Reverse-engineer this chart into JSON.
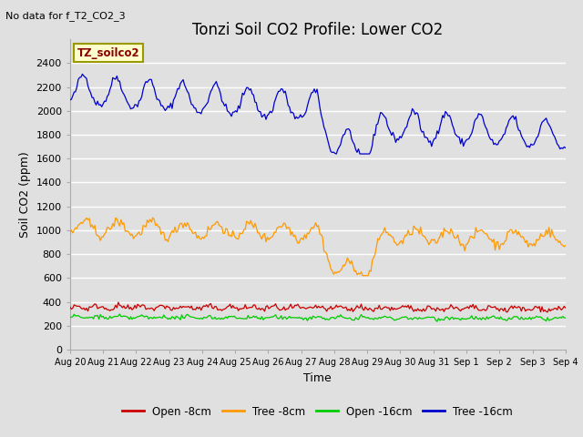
{
  "title": "Tonzi Soil CO2 Profile: Lower CO2",
  "subtitle": "No data for f_T2_CO2_3",
  "xlabel": "Time",
  "ylabel": "Soil CO2 (ppm)",
  "legend_label": "TZ_soilco2",
  "ylim": [
    0,
    2600
  ],
  "yticks": [
    0,
    200,
    400,
    600,
    800,
    1000,
    1200,
    1400,
    1600,
    1800,
    2000,
    2200,
    2400
  ],
  "xtick_labels": [
    "Aug 20",
    "Aug 21",
    "Aug 22",
    "Aug 23",
    "Aug 24",
    "Aug 25",
    "Aug 26",
    "Aug 27",
    "Aug 28",
    "Aug 29",
    "Aug 30",
    "Aug 31",
    "Sep 1",
    "Sep 2",
    "Sep 3",
    "Sep 4"
  ],
  "legend_entries": [
    "Open -8cm",
    "Tree -8cm",
    "Open -16cm",
    "Tree -16cm"
  ],
  "legend_colors": [
    "#cc0000",
    "#ff9900",
    "#00cc00",
    "#0000cc"
  ],
  "bg_color": "#e0e0e0",
  "grid_color": "#ffffff",
  "title_fontsize": 12,
  "axis_fontsize": 9,
  "tick_fontsize": 8
}
